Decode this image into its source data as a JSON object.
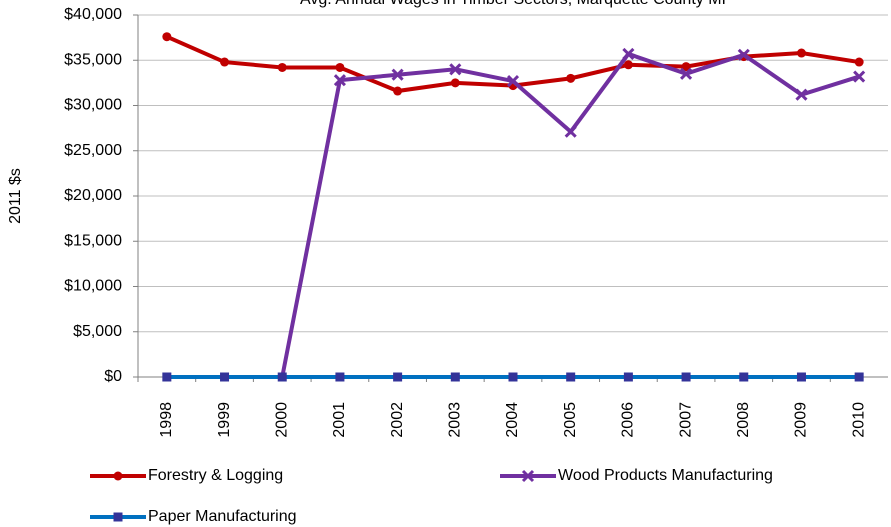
{
  "chart_data": {
    "type": "line",
    "title": "Avg. Annual Wages in Timber Sectors, Marquette County MI",
    "y_label": "2011 $s",
    "categories": [
      "1998",
      "1999",
      "2000",
      "2001",
      "2002",
      "2003",
      "2004",
      "2005",
      "2006",
      "2007",
      "2008",
      "2009",
      "2010"
    ],
    "series": [
      {
        "name": "Forestry & Logging",
        "color": "#c00000",
        "marker": "circle",
        "values": [
          37600,
          34800,
          34200,
          34200,
          31600,
          32500,
          32200,
          33000,
          34500,
          34300,
          35400,
          35800,
          34800
        ]
      },
      {
        "name": "Wood Products Manufacturing",
        "color": "#7030a0",
        "marker": "x",
        "values": [
          null,
          null,
          0,
          32800,
          33400,
          34000,
          32700,
          27100,
          35700,
          33500,
          35600,
          31200,
          33200
        ]
      },
      {
        "name": "Paper Manufacturing",
        "color": "#0070c0",
        "marker": "square",
        "values": [
          0,
          0,
          0,
          0,
          0,
          0,
          0,
          0,
          0,
          0,
          0,
          0,
          0
        ]
      }
    ],
    "ylim": [
      0,
      40000
    ],
    "yticks": [
      {
        "value": 0,
        "label": "$0"
      },
      {
        "value": 5000,
        "label": "$5,000"
      },
      {
        "value": 10000,
        "label": "$10,000"
      },
      {
        "value": 15000,
        "label": "$15,000"
      },
      {
        "value": 20000,
        "label": "$20,000"
      },
      {
        "value": 25000,
        "label": "$25,000"
      },
      {
        "value": 30000,
        "label": "$30,000"
      },
      {
        "value": 35000,
        "label": "$35,000"
      },
      {
        "value": 40000,
        "label": "$40,000"
      }
    ],
    "grid": true
  }
}
